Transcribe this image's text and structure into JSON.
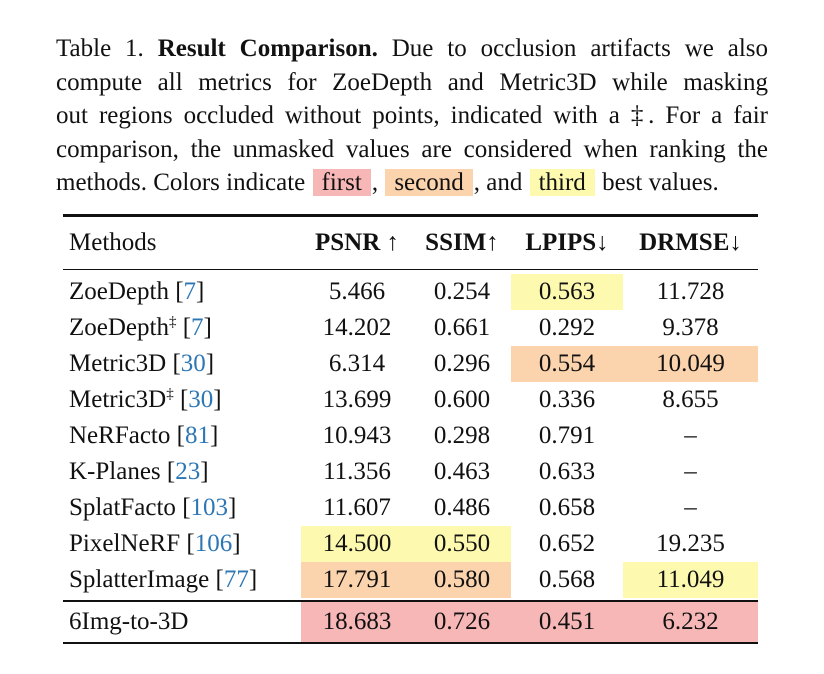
{
  "caption": {
    "label": "Table 1.",
    "title": "Result Comparison.",
    "line1_rest": "Due to occlusion artifacts we also",
    "line2": "compute all metrics for ZoeDepth and Metric3D while masking",
    "line3": "out regions occluded without points, indicated with a ‡. For a fair",
    "line4": "comparison, the unmasked values are considered when ranking the",
    "line5_prefix": "methods. Colors indicate",
    "legend": {
      "first": "first",
      "second": "second",
      "third": "third"
    },
    "sep1": ",",
    "sep2": ", and",
    "line5_suffix": "best values."
  },
  "colors": {
    "first": "#f8b7b7",
    "second": "#fbd3ad",
    "third": "#fdfab0",
    "citation": "#2e77b5"
  },
  "table": {
    "headers": {
      "methods": "Methods",
      "psnr": "PSNR ↑",
      "ssim": "SSIM↑",
      "lpips": "LPIPS↓",
      "drmse": "DRMSE↓"
    },
    "rows": [
      {
        "name": "ZoeDepth",
        "dagger": "",
        "cite": "7",
        "psnr": "5.466",
        "ssim": "0.254",
        "lpips": "0.563",
        "drmse": "11.728"
      },
      {
        "name": "ZoeDepth",
        "dagger": "‡",
        "cite": "7",
        "psnr": "14.202",
        "ssim": "0.661",
        "lpips": "0.292",
        "drmse": "9.378"
      },
      {
        "name": "Metric3D",
        "dagger": "",
        "cite": "30",
        "psnr": "6.314",
        "ssim": "0.296",
        "lpips": "0.554",
        "drmse": "10.049"
      },
      {
        "name": "Metric3D",
        "dagger": "‡",
        "cite": "30",
        "psnr": "13.699",
        "ssim": "0.600",
        "lpips": "0.336",
        "drmse": "8.655"
      },
      {
        "name": "NeRFacto",
        "dagger": "",
        "cite": "81",
        "psnr": "10.943",
        "ssim": "0.298",
        "lpips": "0.791",
        "drmse": "–"
      },
      {
        "name": "K-Planes",
        "dagger": "",
        "cite": "23",
        "psnr": "11.356",
        "ssim": "0.463",
        "lpips": "0.633",
        "drmse": "–"
      },
      {
        "name": "SplatFacto",
        "dagger": "",
        "cite": "103",
        "psnr": "11.607",
        "ssim": "0.486",
        "lpips": "0.658",
        "drmse": "–"
      },
      {
        "name": "PixelNeRF",
        "dagger": "",
        "cite": "106",
        "psnr": "14.500",
        "ssim": "0.550",
        "lpips": "0.652",
        "drmse": "19.235"
      },
      {
        "name": "SplatterImage",
        "dagger": "",
        "cite": "77",
        "psnr": "17.791",
        "ssim": "0.580",
        "lpips": "0.568",
        "drmse": "11.049"
      }
    ],
    "ours": {
      "name": "6Img-to-3D",
      "psnr": "18.683",
      "ssim": "0.726",
      "lpips": "0.451",
      "drmse": "6.232"
    }
  }
}
